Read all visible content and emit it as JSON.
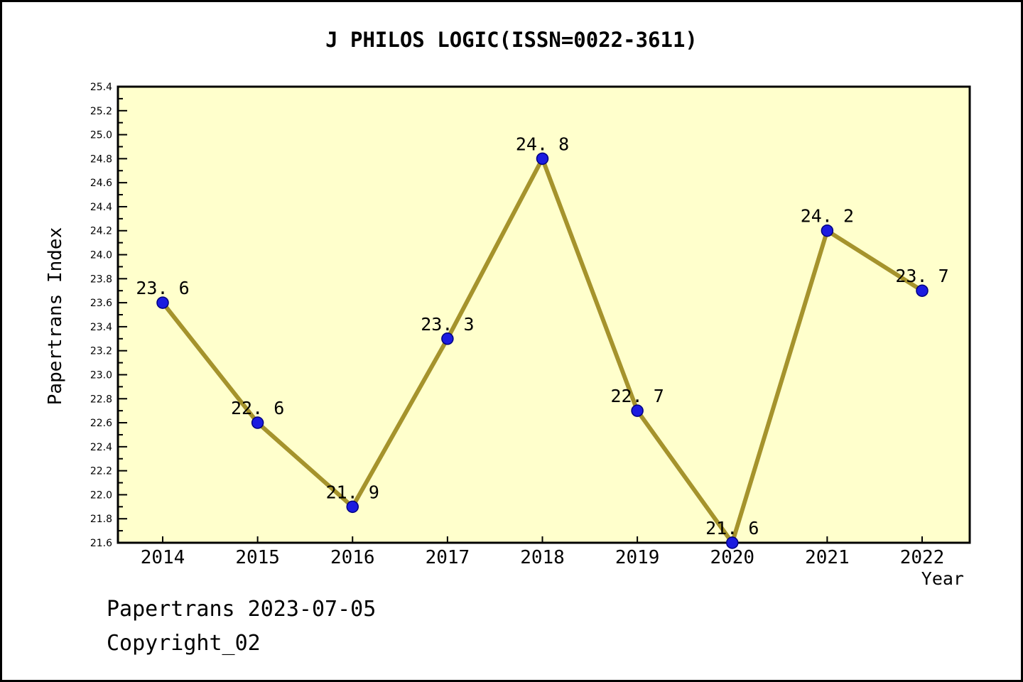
{
  "title": "J PHILOS LOGIC(ISSN=0022-3611)",
  "footer": {
    "line1": "Papertrans 2023-07-05",
    "line2": "Copyright_02"
  },
  "chart_data": {
    "type": "line",
    "title": "J PHILOS LOGIC(ISSN=0022-3611)",
    "xlabel": "Year",
    "ylabel": "Papertrans Index",
    "categories": [
      "2014",
      "2015",
      "2016",
      "2017",
      "2018",
      "2019",
      "2020",
      "2021",
      "2022"
    ],
    "values": [
      23.6,
      22.6,
      21.9,
      23.3,
      24.8,
      22.7,
      21.6,
      24.2,
      23.7
    ],
    "point_labels": [
      "23. 6",
      "22. 6",
      "21. 9",
      "23. 3",
      "24. 8",
      "22. 7",
      "21. 6",
      "24. 2",
      "23. 7"
    ],
    "ylim": [
      21.6,
      25.4
    ],
    "y_major_step": 0.2,
    "y_minor_step": 0.1,
    "grid": false,
    "legend": "none",
    "colors": {
      "plot_bg": "#ffffcc",
      "line": "#a5932c",
      "marker_fill": "#1b1be0",
      "marker_edge": "#000080",
      "axis": "#000000",
      "text": "#000000"
    }
  }
}
